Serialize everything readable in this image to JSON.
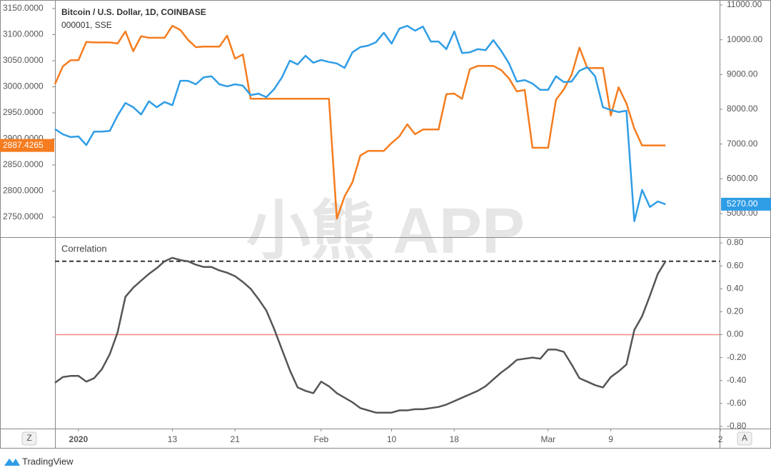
{
  "chart_data": [
    {
      "type": "line",
      "x": [
        0,
        1,
        2,
        3,
        4,
        5,
        6,
        7,
        8,
        9,
        10,
        11,
        12,
        13,
        14,
        15,
        16,
        17,
        18,
        19,
        20,
        21,
        22,
        23,
        24,
        25,
        26,
        27,
        28,
        29,
        30,
        31,
        32,
        33,
        34,
        35,
        36,
        37,
        38,
        39,
        40,
        41,
        42,
        43,
        44,
        45,
        46,
        47,
        48,
        49,
        50,
        51,
        52,
        53,
        54,
        55,
        56,
        57,
        58,
        59,
        60,
        61,
        62,
        63,
        64,
        65,
        66,
        67,
        68,
        69,
        70,
        71,
        72,
        73,
        74,
        75,
        76,
        77,
        78
      ],
      "xlim": [
        0,
        84.9
      ],
      "ylim": [
        2711.6,
        3166.4
      ],
      "yticks": [
        {
          "value": 3150,
          "label": "3150.0000"
        },
        {
          "value": 3100,
          "label": "3100.0000"
        },
        {
          "value": 3050,
          "label": "3050.0000"
        },
        {
          "value": 3000,
          "label": "3000.0000"
        },
        {
          "value": 2950,
          "label": "2950.0000"
        },
        {
          "value": 2900,
          "label": "2900.0000"
        },
        {
          "value": 2850,
          "label": "2850.0000"
        },
        {
          "value": 2800,
          "label": "2800.0000"
        },
        {
          "value": 2750,
          "label": "2750.0000"
        }
      ],
      "y2lim": [
        4322,
        11144
      ],
      "y2ticks": [
        {
          "value": 11000,
          "label": "11000.00"
        },
        {
          "value": 10000,
          "label": "10000.00"
        },
        {
          "value": 9000,
          "label": "9000.00"
        },
        {
          "value": 8000,
          "label": "8000.00"
        },
        {
          "value": 7000,
          "label": "7000.00"
        },
        {
          "value": 6000,
          "label": "6000.00"
        },
        {
          "value": 5000,
          "label": "5000.00"
        }
      ],
      "series": [
        {
          "name": "000001, SSE",
          "color": "#f57c1f",
          "values": [
            3005,
            3039,
            3051,
            3051,
            3086,
            3085,
            3085,
            3085,
            3083,
            3106,
            3068,
            3097,
            3094,
            3094,
            3094,
            3117,
            3109,
            3090,
            3076,
            3077,
            3077,
            3077,
            3098,
            3054,
            3062,
            2977,
            2977,
            2977,
            2977,
            2977,
            2977,
            2977,
            2977,
            2977,
            2977,
            2977,
            2747,
            2790,
            2817,
            2868,
            2877,
            2877,
            2877,
            2892,
            2905,
            2928,
            2909,
            2918,
            2918,
            2918,
            2986,
            2987,
            2977,
            3034,
            3040,
            3040,
            3040,
            3032,
            3016,
            2991,
            2994,
            2883,
            2883,
            2883,
            2975,
            2995,
            3023,
            3075,
            3036,
            3036,
            3036,
            2945,
            2999,
            2968,
            2920,
            2887.4265,
            2887.4265,
            2887.4265,
            2887.4265
          ]
        },
        {
          "name": "Bitcoin / U.S. Dollar, 1D, COINBASE",
          "color": "#2f9de6",
          "axis": "y2",
          "last_label": "5270.00",
          "values": [
            7430,
            7280,
            7200,
            7220,
            6970,
            7360,
            7360,
            7380,
            7820,
            8180,
            8060,
            7850,
            8230,
            8060,
            8210,
            8120,
            8820,
            8820,
            8720,
            8920,
            8950,
            8720,
            8660,
            8720,
            8680,
            8410,
            8450,
            8350,
            8580,
            8920,
            9400,
            9290,
            9540,
            9340,
            9420,
            9360,
            9320,
            9190,
            9640,
            9790,
            9830,
            9930,
            10200,
            9890,
            10320,
            10400,
            10260,
            10380,
            9950,
            9950,
            9730,
            10240,
            9620,
            9640,
            9730,
            9700,
            9990,
            9680,
            9320,
            8800,
            8840,
            8740,
            8560,
            8560,
            8950,
            8780,
            8800,
            9110,
            9210,
            8950,
            8060,
            7980,
            7920,
            7960,
            4780,
            5680,
            5190,
            5350,
            5270
          ]
        }
      ]
    },
    {
      "type": "line",
      "title": "Correlation",
      "y_axis_side": "right",
      "x": [
        0,
        1,
        2,
        3,
        4,
        5,
        6,
        7,
        8,
        9,
        10,
        11,
        12,
        13,
        14,
        15,
        16,
        17,
        18,
        19,
        20,
        21,
        22,
        23,
        24,
        25,
        26,
        27,
        28,
        29,
        30,
        31,
        32,
        33,
        34,
        35,
        36,
        37,
        38,
        39,
        40,
        41,
        42,
        43,
        44,
        45,
        46,
        47,
        48,
        49,
        50,
        51,
        52,
        53,
        54,
        55,
        56,
        57,
        58,
        59,
        60,
        61,
        62,
        63,
        64,
        65,
        66,
        67,
        68,
        69,
        70,
        71,
        72,
        73,
        74,
        75,
        76,
        77,
        78
      ],
      "xlim": [
        0,
        84.9
      ],
      "xticks": [
        {
          "value": 3,
          "label": "2020"
        },
        {
          "value": 15,
          "label": "13"
        },
        {
          "value": 23,
          "label": "21"
        },
        {
          "value": 34,
          "label": "Feb"
        },
        {
          "value": 43,
          "label": "10"
        },
        {
          "value": 51,
          "label": "18"
        },
        {
          "value": 63,
          "label": "Mar"
        },
        {
          "value": 71,
          "label": "9"
        },
        {
          "value": 85,
          "label": "2"
        }
      ],
      "ylim": [
        -0.819,
        0.844
      ],
      "yticks": [
        {
          "value": 0.8,
          "label": "0.80"
        },
        {
          "value": 0.6,
          "label": "0.60"
        },
        {
          "value": 0.4,
          "label": "0.40"
        },
        {
          "value": 0.2,
          "label": "0.20"
        },
        {
          "value": 0,
          "label": "0.00"
        },
        {
          "value": -0.2,
          "label": "-0.20"
        },
        {
          "value": -0.4,
          "label": "-0.40"
        },
        {
          "value": -0.6,
          "label": "-0.60"
        },
        {
          "value": -0.8,
          "label": "-0.80"
        }
      ],
      "hlines": [
        {
          "value": 0.64,
          "color": "#333333",
          "dashed": true
        },
        {
          "value": 0,
          "color": "#f08a80",
          "dashed": false
        }
      ],
      "series": [
        {
          "name": "Correlation",
          "color": "#555555",
          "values": [
            -0.42,
            -0.37,
            -0.36,
            -0.36,
            -0.41,
            -0.38,
            -0.3,
            -0.17,
            0.02,
            0.33,
            0.41,
            0.47,
            0.53,
            0.58,
            0.64,
            0.67,
            0.65,
            0.64,
            0.61,
            0.59,
            0.59,
            0.56,
            0.54,
            0.51,
            0.46,
            0.4,
            0.31,
            0.21,
            0.05,
            -0.13,
            -0.31,
            -0.46,
            -0.49,
            -0.51,
            -0.41,
            -0.45,
            -0.51,
            -0.55,
            -0.59,
            -0.64,
            -0.66,
            -0.68,
            -0.68,
            -0.68,
            -0.66,
            -0.66,
            -0.65,
            -0.65,
            -0.64,
            -0.63,
            -0.61,
            -0.58,
            -0.55,
            -0.52,
            -0.49,
            -0.45,
            -0.39,
            -0.33,
            -0.28,
            -0.22,
            -0.21,
            -0.2,
            -0.21,
            -0.13,
            -0.13,
            -0.15,
            -0.26,
            -0.38,
            -0.41,
            -0.44,
            -0.46,
            -0.37,
            -0.32,
            -0.26,
            0.04,
            0.16,
            0.34,
            0.53,
            0.64
          ]
        }
      ]
    }
  ],
  "ui": {
    "scale_left": "Z",
    "scale_right": "A",
    "brand": "TradingView",
    "watermark": "小熊 APP"
  }
}
